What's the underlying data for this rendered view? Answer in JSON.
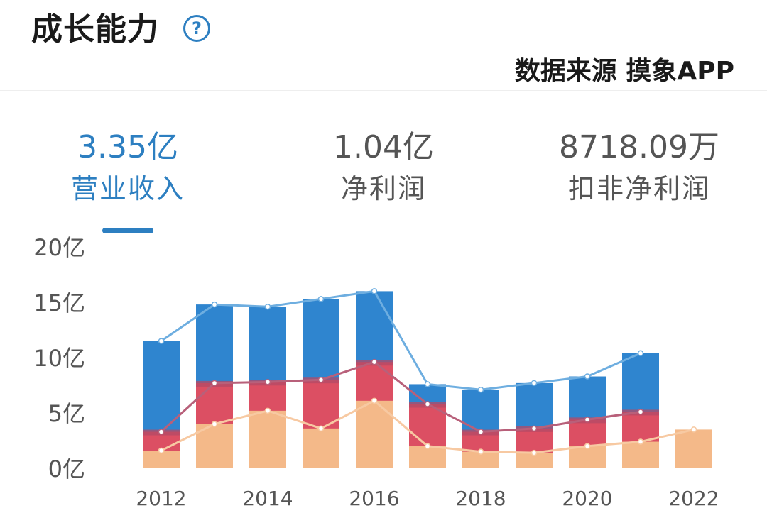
{
  "header": {
    "title": "成长能力",
    "help_icon": "question-circle-icon",
    "source_label": "数据来源 摸象APP"
  },
  "metrics": [
    {
      "value": "3.35亿",
      "label": "营业收入",
      "active": true
    },
    {
      "value": "1.04亿",
      "label": "净利润",
      "active": false
    },
    {
      "value": "8718.09万",
      "label": "扣非净利润",
      "active": false
    }
  ],
  "colors": {
    "accent": "#2d7fc1",
    "revenue": "#2f85cf",
    "profit": "#dc4f63",
    "base": "#f4b989"
  },
  "chart_data": {
    "type": "bar",
    "y_tick_labels": [
      "20亿",
      "15亿",
      "10亿",
      "5亿",
      "0亿"
    ],
    "y_ticks": [
      20,
      15,
      10,
      5,
      0
    ],
    "ylim": [
      0,
      20
    ],
    "x_tick_labels": [
      "2012",
      "2014",
      "2016",
      "2018",
      "2020",
      "2022"
    ],
    "categories": [
      "2012",
      "2013",
      "2014",
      "2015",
      "2016",
      "2017",
      "2018",
      "2019",
      "2020",
      "2021",
      "2022"
    ],
    "series": [
      {
        "values": [
          11.5,
          14.8,
          14.6,
          15.3,
          16.0,
          7.6,
          7.1,
          7.7,
          8.3,
          10.4,
          null
        ]
      },
      {
        "values": [
          3.3,
          7.7,
          7.8,
          8.0,
          9.6,
          5.8,
          3.3,
          3.6,
          4.4,
          5.1,
          null
        ]
      },
      {
        "values": [
          1.6,
          4.0,
          5.2,
          3.6,
          6.1,
          2.0,
          1.5,
          1.4,
          2.0,
          2.4,
          3.5
        ]
      }
    ]
  }
}
